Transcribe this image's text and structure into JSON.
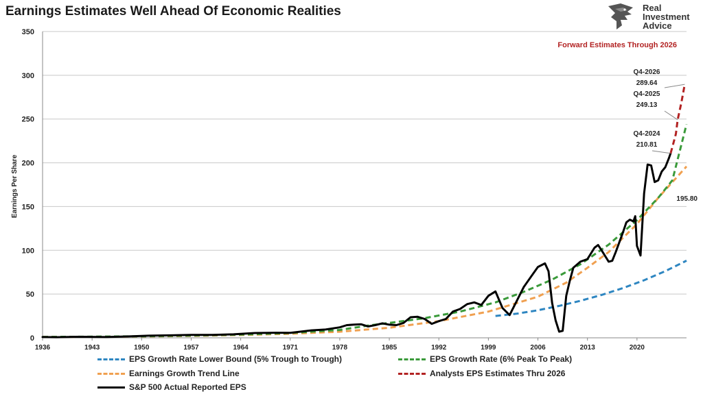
{
  "header": {
    "title": "Earnings Estimates Well Ahead Of Economic Realities"
  },
  "logo": {
    "line1": "Real",
    "line2": "Investment",
    "line3": "Advice"
  },
  "chart_data": {
    "type": "line",
    "title": "Earnings Estimates Well Ahead Of Economic Realities",
    "subtitle": "Forward Estimates Through 2026",
    "xlabel": "",
    "ylabel": "Earnings Per Share",
    "xlim": [
      1936,
      2027
    ],
    "ylim": [
      0,
      350
    ],
    "x_ticks": [
      "1936",
      "1943",
      "1950",
      "1957",
      "1964",
      "1971",
      "1978",
      "1985",
      "1992",
      "1999",
      "2006",
      "2013",
      "2020"
    ],
    "y_ticks": [
      "0",
      "50",
      "100",
      "150",
      "200",
      "250",
      "300",
      "350"
    ],
    "grid": "horizontal",
    "legend_position": "bottom",
    "colors": {
      "actual": "#000000",
      "lower_bound": "#2e86c1",
      "peak_rate": "#3a9a3a",
      "trend": "#f0a050",
      "estimates": "#b22222",
      "subtitle": "#b22222",
      "grid": "#c8c8c8"
    },
    "series": [
      {
        "name": "EPS Growth Rate Lower Bound (5% Trough to Trough)",
        "key": "lower_bound",
        "style": "dashed",
        "points": [
          [
            2000,
            25
          ],
          [
            2003,
            27.6
          ],
          [
            2006,
            31.5
          ],
          [
            2009,
            36.5
          ],
          [
            2012,
            42.3
          ],
          [
            2015,
            49
          ],
          [
            2018,
            56.8
          ],
          [
            2021,
            65.8
          ],
          [
            2024,
            76.2
          ],
          [
            2027,
            88.2
          ]
        ]
      },
      {
        "name": "EPS Growth Rate (6% Peak To Peak)",
        "key": "peak_rate",
        "style": "dashed",
        "points": [
          [
            1936,
            1
          ],
          [
            1943,
            1.3
          ],
          [
            1950,
            1.8
          ],
          [
            1957,
            2.6
          ],
          [
            1964,
            3.7
          ],
          [
            1971,
            5.5
          ],
          [
            1978,
            9
          ],
          [
            1982,
            14
          ],
          [
            1985,
            17
          ],
          [
            1990,
            22.5
          ],
          [
            1995,
            30
          ],
          [
            2000,
            40.5
          ],
          [
            2004,
            52.5
          ],
          [
            2008,
            66.5
          ],
          [
            2012,
            84
          ],
          [
            2016,
            106.5
          ],
          [
            2020,
            134.5
          ],
          [
            2023,
            160
          ],
          [
            2025,
            180
          ],
          [
            2027,
            244
          ]
        ]
      },
      {
        "name": "Earnings Growth Trend Line",
        "key": "trend",
        "style": "dashed",
        "points": [
          [
            1936,
            1
          ],
          [
            1943,
            1.2
          ],
          [
            1950,
            1.6
          ],
          [
            1957,
            2.2
          ],
          [
            1964,
            3.2
          ],
          [
            1971,
            4.6
          ],
          [
            1978,
            7
          ],
          [
            1985,
            11.5
          ],
          [
            1992,
            19
          ],
          [
            1999,
            30
          ],
          [
            2006,
            47
          ],
          [
            2010,
            63
          ],
          [
            2013,
            80
          ],
          [
            2016,
            98
          ],
          [
            2020,
            130
          ],
          [
            2023,
            160
          ],
          [
            2027,
            195.8
          ]
        ]
      },
      {
        "name": "Analysts EPS Estimates Thru 2026",
        "key": "estimates",
        "style": "dashed",
        "points": [
          [
            2024.75,
            210.81
          ],
          [
            2025,
            218
          ],
          [
            2025.5,
            233
          ],
          [
            2025.75,
            249.13
          ],
          [
            2026.25,
            268
          ],
          [
            2026.75,
            289.64
          ]
        ]
      },
      {
        "name": "S&P 500 Actual Reported EPS",
        "key": "actual",
        "style": "solid",
        "points": [
          [
            1936,
            0.9
          ],
          [
            1938,
            0.7
          ],
          [
            1941,
            1.2
          ],
          [
            1945,
            0.9
          ],
          [
            1948,
            1.6
          ],
          [
            1951,
            2.4
          ],
          [
            1954,
            2.8
          ],
          [
            1957,
            3.4
          ],
          [
            1960,
            3.3
          ],
          [
            1963,
            4.0
          ],
          [
            1966,
            5.5
          ],
          [
            1969,
            5.8
          ],
          [
            1971,
            5.7
          ],
          [
            1974,
            8.5
          ],
          [
            1976,
            9.5
          ],
          [
            1978,
            12
          ],
          [
            1979,
            14.5
          ],
          [
            1980,
            15
          ],
          [
            1981,
            15.5
          ],
          [
            1982,
            13
          ],
          [
            1983,
            14.5
          ],
          [
            1984,
            16.5
          ],
          [
            1985,
            15
          ],
          [
            1986,
            14.5
          ],
          [
            1987,
            17
          ],
          [
            1988,
            23.5
          ],
          [
            1989,
            24
          ],
          [
            1990,
            21.5
          ],
          [
            1991,
            16
          ],
          [
            1992,
            19
          ],
          [
            1993,
            21.5
          ],
          [
            1994,
            30
          ],
          [
            1995,
            33
          ],
          [
            1996,
            38.5
          ],
          [
            1997,
            40.5
          ],
          [
            1998,
            37.5
          ],
          [
            1999,
            48
          ],
          [
            2000,
            53
          ],
          [
            2001,
            34
          ],
          [
            2002,
            26
          ],
          [
            2003,
            42
          ],
          [
            2004,
            58
          ],
          [
            2005,
            69.5
          ],
          [
            2006,
            81
          ],
          [
            2007,
            85
          ],
          [
            2007.5,
            76
          ],
          [
            2008,
            40
          ],
          [
            2008.5,
            20
          ],
          [
            2009,
            7
          ],
          [
            2009.5,
            8
          ],
          [
            2010,
            48
          ],
          [
            2010.5,
            65
          ],
          [
            2011,
            80
          ],
          [
            2012,
            87
          ],
          [
            2013,
            90
          ],
          [
            2014,
            103
          ],
          [
            2014.5,
            106
          ],
          [
            2015,
            100
          ],
          [
            2016,
            87
          ],
          [
            2016.5,
            88
          ],
          [
            2017,
            98
          ],
          [
            2018,
            120
          ],
          [
            2018.5,
            132
          ],
          [
            2019,
            135
          ],
          [
            2019.5,
            133
          ],
          [
            2019.75,
            139
          ],
          [
            2020,
            105
          ],
          [
            2020.5,
            94
          ],
          [
            2021,
            165
          ],
          [
            2021.5,
            198
          ],
          [
            2022,
            197
          ],
          [
            2022.5,
            178
          ],
          [
            2023,
            180
          ],
          [
            2023.5,
            190
          ],
          [
            2024,
            195
          ],
          [
            2024.5,
            205
          ],
          [
            2024.75,
            210.81
          ]
        ]
      }
    ],
    "annotations": [
      {
        "label": "Q4-2024",
        "value": "210.81",
        "target": [
          2024.75,
          210.81
        ]
      },
      {
        "label": "Q4-2025",
        "value": "249.13",
        "target": [
          2025.75,
          249.13
        ]
      },
      {
        "label": "Q4-2026",
        "value": "289.64",
        "target": [
          2026.75,
          289.64
        ]
      },
      {
        "label": "",
        "value": "195.80",
        "target": [
          2027,
          195.8
        ]
      }
    ]
  },
  "legend": {
    "items": [
      {
        "key": "lower_bound",
        "label": "EPS Growth Rate Lower Bound (5% Trough to Trough)",
        "color": "#2e86c1",
        "style": "dashed"
      },
      {
        "key": "peak_rate",
        "label": "EPS Growth Rate (6% Peak To Peak)",
        "color": "#3a9a3a",
        "style": "dashed"
      },
      {
        "key": "trend",
        "label": "Earnings Growth Trend Line",
        "color": "#f0a050",
        "style": "dashed"
      },
      {
        "key": "estimates",
        "label": "Analysts EPS Estimates Thru 2026",
        "color": "#b22222",
        "style": "dashed"
      },
      {
        "key": "actual",
        "label": "S&P 500 Actual Reported EPS",
        "color": "#000000",
        "style": "solid"
      }
    ]
  }
}
